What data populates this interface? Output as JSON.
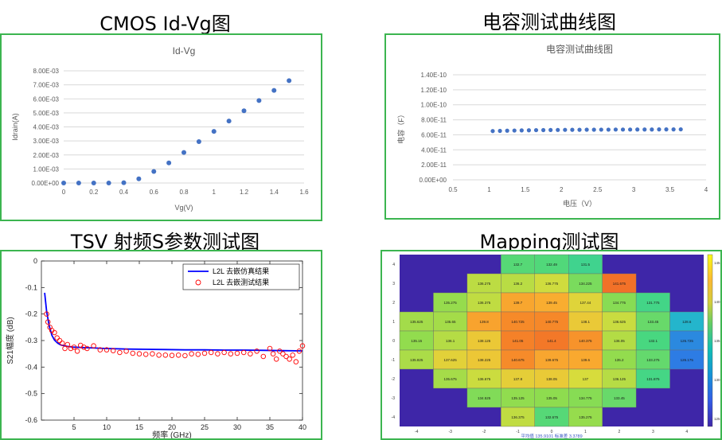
{
  "headings": {
    "idvg": "CMOS Id-Vg图",
    "cap": "电容测试曲线图",
    "tsv": "TSV 射频S参数测试图",
    "mapping": "Mapping测试图"
  },
  "colors": {
    "border": "#3cb550",
    "excel_marker": "#4472c4",
    "sim_line": "#0000ff",
    "meas_marker": "#ff0000"
  },
  "chart_data": [
    {
      "id": "idvg",
      "type": "scatter",
      "title": "Id-Vg",
      "xlabel": "Vg(V)",
      "ylabel": "Idrain(A)",
      "xlim": [
        0,
        1.6
      ],
      "ylim": [
        0,
        0.008
      ],
      "xticks": [
        "0",
        "0.2",
        "0.4",
        "0.6",
        "0.8",
        "1",
        "1.2",
        "1.4",
        "1.6"
      ],
      "yticks": [
        "0.00E+00",
        "1.00E-03",
        "2.00E-03",
        "3.00E-03",
        "4.00E-03",
        "5.00E-03",
        "6.00E-03",
        "7.00E-03",
        "8.00E-03"
      ],
      "x": [
        0,
        0.1,
        0.2,
        0.3,
        0.4,
        0.5,
        0.6,
        0.7,
        0.8,
        0.9,
        1.0,
        1.1,
        1.2,
        1.3,
        1.4,
        1.5
      ],
      "y": [
        0,
        0,
        0,
        0,
        2e-05,
        0.0003,
        0.00082,
        0.00143,
        0.00218,
        0.00295,
        0.00368,
        0.00442,
        0.00515,
        0.00588,
        0.0066,
        0.0073
      ]
    },
    {
      "id": "cap",
      "type": "scatter",
      "title": "电容测试曲线图",
      "xlabel": "电压（V）",
      "ylabel": "电容（F）",
      "xlim": [
        0.5,
        4
      ],
      "ylim": [
        0,
        1.4e-10
      ],
      "xticks": [
        "0.5",
        "1",
        "1.5",
        "2",
        "2.5",
        "3",
        "3.5",
        "4"
      ],
      "yticks": [
        "0.00E+00",
        "2.00E-11",
        "4.00E-11",
        "6.00E-11",
        "8.00E-11",
        "1.00E-10",
        "1.20E-10",
        "1.40E-10"
      ],
      "x": [
        1.05,
        1.15,
        1.25,
        1.35,
        1.45,
        1.55,
        1.65,
        1.75,
        1.85,
        1.95,
        2.05,
        2.15,
        2.25,
        2.35,
        2.45,
        2.55,
        2.65,
        2.75,
        2.85,
        2.95,
        3.05,
        3.15,
        3.25,
        3.35,
        3.45,
        3.55,
        3.65
      ],
      "y": [
        6.5e-11,
        6.52e-11,
        6.55e-11,
        6.57e-11,
        6.59e-11,
        6.6e-11,
        6.62e-11,
        6.63e-11,
        6.64e-11,
        6.65e-11,
        6.66e-11,
        6.67e-11,
        6.67e-11,
        6.68e-11,
        6.68e-11,
        6.69e-11,
        6.69e-11,
        6.7e-11,
        6.7e-11,
        6.7e-11,
        6.71e-11,
        6.71e-11,
        6.71e-11,
        6.72e-11,
        6.72e-11,
        6.72e-11,
        6.73e-11
      ]
    },
    {
      "id": "tsv",
      "type": "line",
      "xlabel": "频率 (GHz)",
      "ylabel": "S21幅度 (dB)",
      "xlim": [
        0,
        40
      ],
      "ylim": [
        -0.6,
        0
      ],
      "xticks": [
        "5",
        "10",
        "15",
        "20",
        "25",
        "30",
        "35",
        "40"
      ],
      "yticks": [
        "0",
        "-0.1",
        "-0.2",
        "-0.3",
        "-0.4",
        "-0.5",
        "-0.6"
      ],
      "legend_position": "top-right",
      "series": [
        {
          "name": "L2L 去嵌仿真结果",
          "style": "line",
          "x": [
            0.5,
            0.8,
            1.2,
            1.6,
            2,
            2.5,
            3,
            4,
            5,
            7,
            10,
            13,
            16,
            19,
            22,
            25,
            28,
            31,
            34,
            37,
            40
          ],
          "y": [
            -0.12,
            -0.19,
            -0.245,
            -0.28,
            -0.298,
            -0.31,
            -0.317,
            -0.322,
            -0.325,
            -0.327,
            -0.33,
            -0.332,
            -0.333,
            -0.334,
            -0.335,
            -0.335,
            -0.336,
            -0.336,
            -0.337,
            -0.338,
            -0.339
          ]
        },
        {
          "name": "L2L 去嵌测试结果",
          "style": "markers",
          "x": [
            0.8,
            1,
            1.3,
            1.6,
            2,
            2.4,
            2.8,
            3.2,
            3.6,
            4,
            4.5,
            5,
            5.5,
            6,
            6.5,
            7,
            8,
            9,
            10,
            11,
            12,
            13,
            14,
            15,
            16,
            17,
            18,
            19,
            20,
            21,
            22,
            23,
            24,
            25,
            26,
            27,
            28,
            29,
            30,
            31,
            32,
            33,
            34,
            35,
            35.5,
            36,
            36.5,
            37,
            37.5,
            38,
            38.5,
            39,
            39.5,
            40
          ],
          "y": [
            -0.2,
            -0.23,
            -0.25,
            -0.262,
            -0.27,
            -0.29,
            -0.3,
            -0.31,
            -0.33,
            -0.315,
            -0.33,
            -0.325,
            -0.34,
            -0.318,
            -0.325,
            -0.33,
            -0.32,
            -0.335,
            -0.335,
            -0.338,
            -0.345,
            -0.34,
            -0.348,
            -0.35,
            -0.352,
            -0.35,
            -0.355,
            -0.355,
            -0.356,
            -0.355,
            -0.357,
            -0.35,
            -0.352,
            -0.348,
            -0.345,
            -0.35,
            -0.345,
            -0.35,
            -0.348,
            -0.345,
            -0.35,
            -0.34,
            -0.36,
            -0.33,
            -0.35,
            -0.37,
            -0.34,
            -0.35,
            -0.36,
            -0.37,
            -0.355,
            -0.38,
            -0.34,
            -0.32
          ]
        }
      ]
    },
    {
      "id": "mapping",
      "type": "heatmap",
      "rows": [
        [
          null,
          null,
          null,
          "132.7",
          "132.49",
          "131.5",
          null,
          null,
          null
        ],
        [
          null,
          null,
          "136.275",
          "136.2",
          "136.775",
          "134.225",
          "141.675",
          null,
          null
        ],
        [
          null,
          "135.275",
          "136.375",
          "139.7",
          "139.45",
          "137.44",
          "134.775",
          "131.775",
          null
        ],
        [
          "135.625",
          "135.65",
          "139.8",
          "140.725",
          "140.775",
          "138.1",
          "136.625",
          "133.45",
          "128.6"
        ],
        [
          "135.15",
          "136.1",
          "138.125",
          "141.05",
          "141.4",
          "140.375",
          "136.05",
          "132.1",
          "126.725"
        ],
        [
          "135.825",
          "137.625",
          "138.225",
          "140.675",
          "139.675",
          "139.6",
          "135.2",
          "133.275",
          "126.175"
        ],
        [
          null,
          "135.675",
          "136.675",
          "137.8",
          "138.05",
          "137",
          "136.125",
          "131.875",
          null
        ],
        [
          null,
          null,
          "134.525",
          "135.125",
          "135.05",
          "134.775",
          "133.45",
          null,
          null
        ],
        [
          null,
          null,
          null,
          "136.375",
          "132.675",
          "135.275",
          null,
          null,
          null
        ]
      ],
      "x_ticks": [
        "-4",
        "-3",
        "-2",
        "-1",
        "0",
        "1",
        "2",
        "3",
        "4"
      ],
      "y_ticks": [
        "4",
        "3",
        "2",
        "1",
        "0",
        "-1",
        "-2",
        "-3",
        "-4"
      ],
      "colorbar_ticks": [
        "145",
        "140",
        "135",
        "130",
        "125"
      ],
      "caption": "平均值 135.9101 标准差 3.3789",
      "value_range": [
        124,
        146
      ]
    }
  ]
}
